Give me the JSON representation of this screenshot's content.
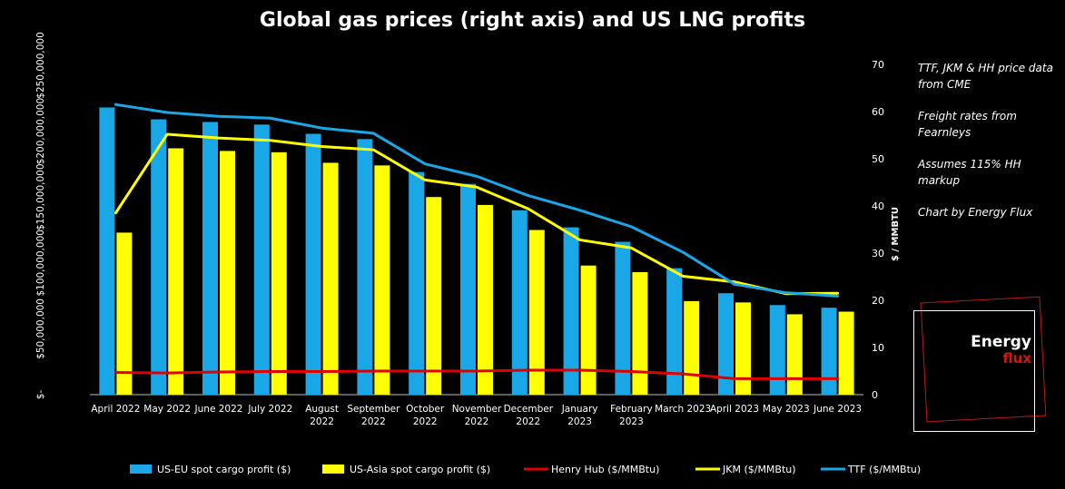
{
  "chart_data": {
    "type": "bar",
    "title": "Global gas prices (right axis) and US LNG profits",
    "categories": [
      "April 2022",
      "May 2022",
      "June 2022",
      "July 2022",
      "August 2022",
      "September 2022",
      "October 2022",
      "November 2022",
      "December 2022",
      "January 2023",
      "February 2023",
      "March 2023",
      "April 2023",
      "May 2023",
      "June 2023"
    ],
    "y_left": {
      "ticks": [
        "$-",
        "$50,000,000",
        "$100,000,000",
        "$150,000,000",
        "$200,000,000",
        "$250,000,000"
      ],
      "range": [
        0,
        250000000
      ]
    },
    "y_right": {
      "label": "$ / MMBTU",
      "ticks": [
        "0",
        "10",
        "20",
        "30",
        "40",
        "50",
        "60",
        "70"
      ],
      "range": [
        0,
        70
      ]
    },
    "bar_series": [
      {
        "name": "US-EU spot cargo profit ($)",
        "color": "#1aa7e8",
        "values": [
          218000000,
          209000000,
          207000000,
          205000000,
          198000000,
          194000000,
          169000000,
          160000000,
          140000000,
          127000000,
          116000000,
          96000000,
          77000000,
          68000000,
          66000000
        ]
      },
      {
        "name": "US-Asia spot cargo profit ($)",
        "color": "#ffff00",
        "values": [
          123000000,
          187000000,
          185000000,
          184000000,
          176000000,
          174000000,
          150000000,
          144000000,
          125000000,
          98000000,
          93000000,
          71000000,
          70000000,
          61000000,
          63000000
        ]
      }
    ],
    "line_series": [
      {
        "name": "Henry Hub ($/MMBtu)",
        "color": "#e00000",
        "values": [
          4.7,
          4.6,
          4.8,
          4.9,
          4.9,
          5.0,
          5.0,
          5.0,
          5.2,
          5.2,
          4.9,
          4.4,
          3.4,
          3.4,
          3.4
        ]
      },
      {
        "name": "JKM ($/MMBtu)",
        "color": "#ffff00",
        "values": [
          38.5,
          55.2,
          54.4,
          53.9,
          52.6,
          51.9,
          45.5,
          44.0,
          39.4,
          32.8,
          31.1,
          25.1,
          23.9,
          21.4,
          21.5
        ]
      },
      {
        "name": "TTF ($/MMBtu)",
        "color": "#1aa7e8",
        "values": [
          61.5,
          59.8,
          59.0,
          58.6,
          56.5,
          55.4,
          48.9,
          46.3,
          42.2,
          39.1,
          35.6,
          30.2,
          23.4,
          21.6,
          20.9
        ]
      }
    ]
  },
  "notes": [
    "TTF, JKM & HH price data from CME",
    "Freight rates from Fearnleys",
    "Assumes 115% HH markup",
    "Chart by Energy Flux"
  ],
  "logo": {
    "line1": "Energy",
    "line2": "flux"
  }
}
